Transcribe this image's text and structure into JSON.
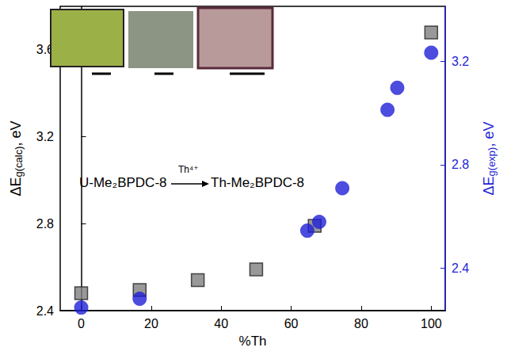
{
  "chart_data": {
    "type": "scatter",
    "x_label": "%Th",
    "y_label": "ΔEg(calc), eV",
    "y2_label": "ΔEg(exp), eV",
    "xlim": [
      -6,
      104
    ],
    "xticks": [
      0,
      20,
      40,
      60,
      80,
      100
    ],
    "ylim": [
      2.4,
      3.8
    ],
    "yticks": [
      2.4,
      2.8,
      3.2,
      3.6
    ],
    "y2lim": [
      2.236,
      3.412
    ],
    "y2ticks": [
      2.4,
      2.8,
      3.2
    ],
    "grid": false,
    "series": [
      {
        "color": "#808080",
        "marker": "square",
        "x": [
          0,
          16.7,
          33.3,
          50,
          66.7,
          100
        ],
        "values": [
          2.48,
          2.495,
          2.54,
          2.59,
          2.79,
          3.68
        ]
      },
      {
        "color": "#1f1fd6",
        "marker": "circle",
        "axis": "y2",
        "x": [
          0,
          16.7,
          64.6,
          68,
          74.6,
          87.5,
          90.3,
          100
        ],
        "values": [
          2.248,
          2.282,
          2.545,
          2.579,
          2.709,
          3.012,
          3.097,
          3.233
        ]
      }
    ],
    "annotations": [
      "U-Me₂BPDC-8",
      "Th⁴⁺",
      "Th-Me₂BPDC-8"
    ]
  }
}
